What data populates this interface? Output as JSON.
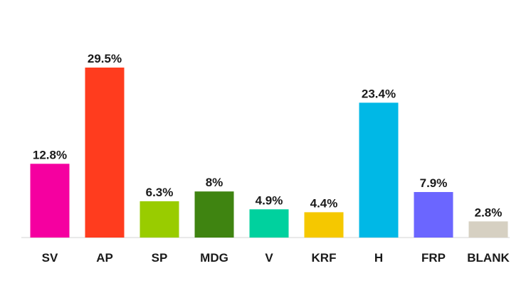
{
  "chart_data": {
    "type": "bar",
    "title": "",
    "xlabel": "",
    "ylabel": "",
    "ylim": [
      0,
      29.5
    ],
    "grid": false,
    "legend": "none",
    "categories": [
      "SV",
      "AP",
      "SP",
      "MDG",
      "V",
      "KRF",
      "H",
      "FRP",
      "BLANK"
    ],
    "values": [
      12.8,
      29.5,
      6.3,
      8,
      4.9,
      4.4,
      23.4,
      7.9,
      2.8
    ],
    "value_labels": [
      "12.8%",
      "29.5%",
      "6.3%",
      "8%",
      "4.9%",
      "4.4%",
      "23.4%",
      "7.9%",
      "2.8%"
    ],
    "colors": [
      "#f500a0",
      "#ff3c1e",
      "#99cc00",
      "#3f8411",
      "#00d19e",
      "#f5c800",
      "#00b8e6",
      "#6b66ff",
      "#d6d0c2"
    ],
    "axis_color": "#e2e2e2"
  }
}
